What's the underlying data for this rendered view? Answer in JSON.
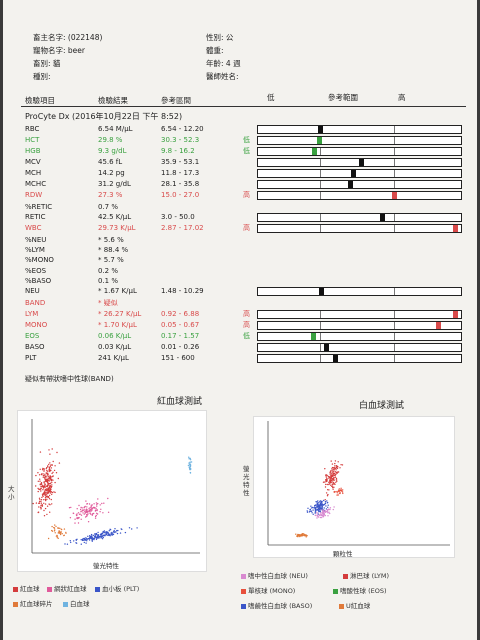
{
  "patient": {
    "owner_name": "畜主名字: (022148)",
    "gender": "性別: 公",
    "pet_name": "寵物名字: beer",
    "weight": "體重:",
    "species": "畜別: 貓",
    "age": "年齡: 4 週",
    "breed": "種別:",
    "doctor": "醫師姓名:"
  },
  "columns": {
    "item": "檢驗項目",
    "result": "檢驗結果",
    "reference": "參考區間",
    "low": "低",
    "range": "參考範圍",
    "high": "高"
  },
  "analyzer": "ProCyte Dx (2016年10月22日 下午 8:52)",
  "results": [
    {
      "name": "RBC",
      "value": "6.54 M/μL",
      "ref": "6.54 - 12.20",
      "flag": "",
      "color": "normal",
      "marker": 0.0,
      "gauge": true
    },
    {
      "name": "HCT",
      "value": "29.8 %",
      "ref": "30.3 - 52.3",
      "flag": "低",
      "color": "low",
      "marker": -0.02,
      "gauge": true
    },
    {
      "name": "HGB",
      "value": "9.3 g/dL",
      "ref": "9.8 - 16.2",
      "flag": "低",
      "color": "low",
      "marker": -0.08,
      "gauge": true
    },
    {
      "name": "MCV",
      "value": "45.6 fL",
      "ref": "35.9 - 53.1",
      "flag": "",
      "color": "normal",
      "marker": 0.56,
      "gauge": true
    },
    {
      "name": "MCH",
      "value": "14.2 pg",
      "ref": "11.8 - 17.3",
      "flag": "",
      "color": "normal",
      "marker": 0.44,
      "gauge": true
    },
    {
      "name": "MCHC",
      "value": "31.2 g/dL",
      "ref": "28.1 - 35.8",
      "flag": "",
      "color": "normal",
      "marker": 0.4,
      "gauge": true
    },
    {
      "name": "RDW",
      "value": "27.3 %",
      "ref": "15.0 - 27.0",
      "flag": "高",
      "color": "high",
      "marker": 1.0,
      "gauge": true
    },
    {
      "name": "%RETIC",
      "value": "0.7 %",
      "ref": "",
      "flag": "",
      "color": "normal",
      "gauge": false
    },
    {
      "name": "RETIC",
      "value": "42.5 K/μL",
      "ref": "3.0 - 50.0",
      "flag": "",
      "color": "normal",
      "marker": 0.84,
      "gauge": true
    },
    {
      "name": "WBC",
      "value": "29.73 K/μL",
      "ref": "2.87 - 17.02",
      "flag": "高",
      "color": "high",
      "marker": 1.9,
      "gauge": true
    },
    {
      "name": "%NEU",
      "value": "* 5.6 %",
      "ref": "",
      "flag": "",
      "color": "normal",
      "gauge": false
    },
    {
      "name": "%LYM",
      "value": "* 88.4 %",
      "ref": "",
      "flag": "",
      "color": "normal",
      "gauge": false
    },
    {
      "name": "%MONO",
      "value": "* 5.7 %",
      "ref": "",
      "flag": "",
      "color": "normal",
      "gauge": false
    },
    {
      "name": "%EOS",
      "value": "0.2 %",
      "ref": "",
      "flag": "",
      "color": "normal",
      "gauge": false
    },
    {
      "name": "%BASO",
      "value": "0.1 %",
      "ref": "",
      "flag": "",
      "color": "normal",
      "gauge": false
    },
    {
      "name": "NEU",
      "value": "* 1.67 K/μL",
      "ref": "1.48 - 10.29",
      "flag": "",
      "color": "normal",
      "marker": 0.02,
      "gauge": true
    },
    {
      "name": "BAND",
      "value": "* 疑似",
      "ref": "",
      "flag": "",
      "color": "high",
      "gauge": false
    },
    {
      "name": "LYM",
      "value": "* 26.27 K/μL",
      "ref": "0.92 - 6.88",
      "flag": "高",
      "color": "high",
      "marker": 2.0,
      "gauge": true
    },
    {
      "name": "MONO",
      "value": "* 1.70 K/μL",
      "ref": "0.05 - 0.67",
      "flag": "高",
      "color": "high",
      "marker": 1.6,
      "gauge": true
    },
    {
      "name": "EOS",
      "value": "0.06 K/μL",
      "ref": "0.17 - 1.57",
      "flag": "低",
      "color": "low",
      "marker": -0.1,
      "gauge": true
    },
    {
      "name": "BASO",
      "value": "0.03 K/μL",
      "ref": "0.01 - 0.26",
      "flag": "",
      "color": "normal",
      "marker": 0.08,
      "gauge": true
    },
    {
      "name": "PLT",
      "value": "241 K/μL",
      "ref": "151 - 600",
      "flag": "",
      "color": "normal",
      "marker": 0.2,
      "gauge": true
    }
  ],
  "band_note": "疑似有帶狀嗜中性球(BAND)",
  "rbc_plot": {
    "title": "紅血球測試",
    "yaxis": "大小",
    "xaxis": "螢光特性",
    "legend": [
      {
        "label": "紅血球",
        "color": "#d43c3c"
      },
      {
        "label": "網狀紅血球",
        "color": "#e05a9a"
      },
      {
        "label": "血小板 (PLT)",
        "color": "#3a55c8"
      },
      {
        "label": "紅血球碎片",
        "color": "#e07a3a"
      },
      {
        "label": "白血球",
        "color": "#6fb3e0"
      }
    ]
  },
  "wbc_plot": {
    "title": "白血球測試",
    "yaxis": "螢光特性",
    "xaxis": "顆粒性",
    "legend": [
      {
        "label": "嗜中性白血球 (NEU)",
        "color": "#d88ad0"
      },
      {
        "label": "淋巴球 (LYM)",
        "color": "#d43c3c"
      },
      {
        "label": "單核球 (MONO)",
        "color": "#e8503c"
      },
      {
        "label": "嗜酸性球 (EOS)",
        "color": "#3aa140"
      },
      {
        "label": "嗜鹼性白血球 (BASO)",
        "color": "#3a55c8"
      },
      {
        "label": "U紅血球",
        "color": "#e07a3a"
      }
    ]
  },
  "colors": {
    "low": "#3aa140",
    "high": "#d94a4a",
    "normal": "#222222",
    "marker_normal": "#111111"
  }
}
